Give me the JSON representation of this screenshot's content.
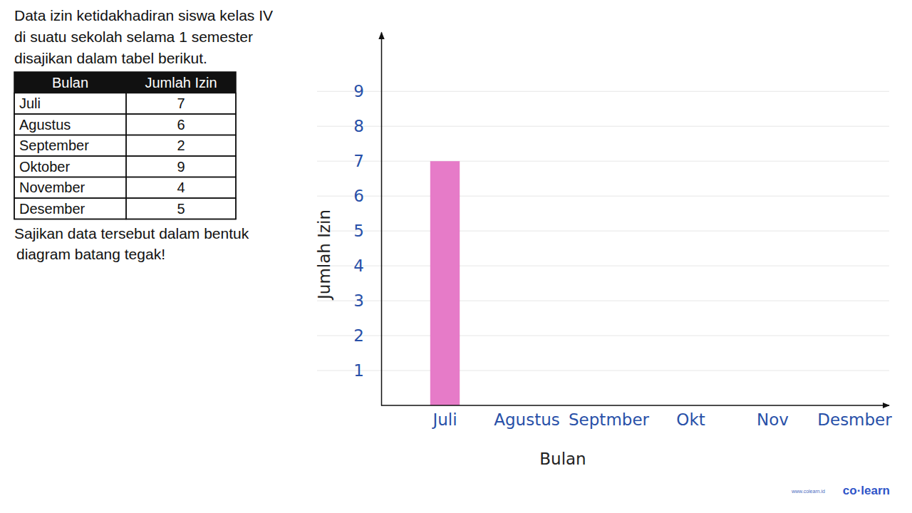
{
  "problem": {
    "lines": [
      "Data izin ketidakhadiran siswa kelas IV",
      "di suatu sekolah selama 1 semester",
      "disajikan dalam tabel berikut."
    ],
    "table": {
      "header": [
        "Bulan",
        "Jumlah Izin"
      ],
      "rows": [
        [
          "Juli",
          7
        ],
        [
          "Agustus",
          6
        ],
        [
          "September",
          2
        ],
        [
          "Oktober",
          9
        ],
        [
          "November",
          4
        ],
        [
          "Desember",
          5
        ]
      ]
    },
    "instruction": [
      "Sajikan data tersebut dalam bentuk",
      "diagram batang tegak!"
    ]
  },
  "chart_data": {
    "type": "bar",
    "categories": [
      "Juli",
      "Agustus",
      "Septmber",
      "Okt",
      "Nov",
      "Desmber"
    ],
    "values": [
      7,
      null,
      null,
      null,
      null,
      null
    ],
    "color": "#e67bc8",
    "ylim": [
      0,
      10.7
    ],
    "yticks": [
      1,
      2,
      3,
      4,
      5,
      6,
      7,
      8,
      9
    ],
    "grid": true,
    "x_label": "Bulan",
    "y_label": "Jumlah Izin"
  },
  "footer": {
    "url": "www.colearn.id",
    "brand": "co·learn"
  }
}
